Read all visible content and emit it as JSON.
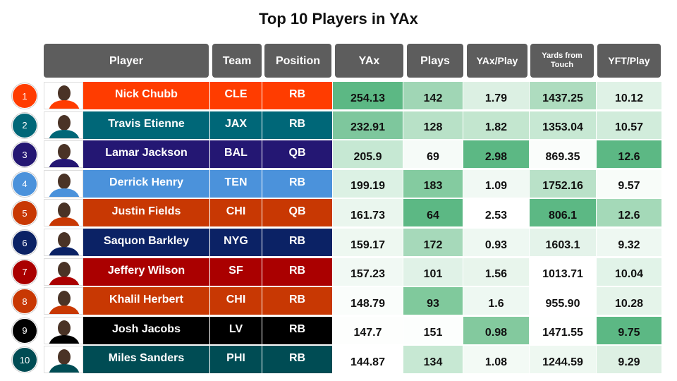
{
  "chart_data": {
    "type": "table",
    "title": "Top 10 Players in YAx",
    "columns": [
      "Player",
      "Team",
      "Position",
      "YAx",
      "Plays",
      "YAx/Play",
      "Yards from Touch",
      "YFT/Play"
    ],
    "rows": [
      {
        "rank": "1",
        "player": "Nick Chubb",
        "team": "CLE",
        "position": "RB",
        "yax": "254.13",
        "plays": "142",
        "yax_play": "1.79",
        "yft": "1437.25",
        "yft_play": "10.12"
      },
      {
        "rank": "2",
        "player": "Travis Etienne",
        "team": "JAX",
        "position": "RB",
        "yax": "232.91",
        "plays": "128",
        "yax_play": "1.82",
        "yft": "1353.04",
        "yft_play": "10.57"
      },
      {
        "rank": "3",
        "player": "Lamar Jackson",
        "team": "BAL",
        "position": "QB",
        "yax": "205.9",
        "plays": "69",
        "yax_play": "2.98",
        "yft": "869.35",
        "yft_play": "12.6"
      },
      {
        "rank": "4",
        "player": "Derrick Henry",
        "team": "TEN",
        "position": "RB",
        "yax": "199.19",
        "plays": "183",
        "yax_play": "1.09",
        "yft": "1752.16",
        "yft_play": "9.57"
      },
      {
        "rank": "5",
        "player": "Justin Fields",
        "team": "CHI",
        "position": "QB",
        "yax": "161.73",
        "plays": "64",
        "yax_play": "2.53",
        "yft": "806.1",
        "yft_play": "12.6"
      },
      {
        "rank": "6",
        "player": "Saquon Barkley",
        "team": "NYG",
        "position": "RB",
        "yax": "159.17",
        "plays": "172",
        "yax_play": "0.93",
        "yft": "1603.1",
        "yft_play": "9.32"
      },
      {
        "rank": "7",
        "player": "Jeffery Wilson",
        "team": "SF",
        "position": "RB",
        "yax": "157.23",
        "plays": "101",
        "yax_play": "1.56",
        "yft": "1013.71",
        "yft_play": "10.04"
      },
      {
        "rank": "8",
        "player": "Khalil Herbert",
        "team": "CHI",
        "position": "RB",
        "yax": "148.79",
        "plays": "93",
        "yax_play": "1.6",
        "yft": "955.90",
        "yft_play": "10.28"
      },
      {
        "rank": "9",
        "player": "Josh Jacobs",
        "team": "LV",
        "position": "RB",
        "yax": "147.7",
        "plays": "151",
        "yax_play": "0.98",
        "yft": "1471.55",
        "yft_play": "9.75"
      },
      {
        "rank": "10",
        "player": "Miles Sanders",
        "team": "PHI",
        "position": "RB",
        "yax": "144.87",
        "plays": "134",
        "yax_play": "1.08",
        "yft": "1244.59",
        "yft_play": "9.29"
      }
    ],
    "team_colors": {
      "CLE": "#ff3c00",
      "JAX": "#006778",
      "BAL": "#241773",
      "TEN": "#4b92db",
      "CHI": "#c83803",
      "NYG": "#0b2265",
      "SF": "#aa0000",
      "LV": "#000000",
      "PHI": "#004c54"
    },
    "cell_shades": {
      "yax": [
        "#5cb884",
        "#7ec79d",
        "#c6e8d3",
        "#dcf1e4",
        "#eaf6ee",
        "#eef8f1",
        "#f1f9f4",
        "#fafdfb",
        "#fdfefd",
        "#ffffff"
      ],
      "plays": [
        "#a0d6b5",
        "#b8e1c7",
        "#f6fbf8",
        "#84cba0",
        "#5cb884",
        "#a6d9ba",
        "#e0f2e7",
        "#80c99c",
        "#fcfefd",
        "#c7e8d3"
      ],
      "yax_play": [
        "#dcf0e3",
        "#c3e6cf",
        "#5cb884",
        "#f1f9f4",
        "#ffffff",
        "#eef8f2",
        "#e8f5ec",
        "#eef8f2",
        "#83c99e",
        "#f3faf5"
      ],
      "yft": [
        "#aedcbf",
        "#c7e8d3",
        "#fafdfb",
        "#b9e1c8",
        "#5cb884",
        "#e4f3ea",
        "#ffffff",
        "#ffffff",
        "#fefffe",
        "#eef8f1"
      ],
      "yft_play": [
        "#dff2e6",
        "#d1ecdb",
        "#5cb884",
        "#f8fcf9",
        "#a4d9b8",
        "#eef8f2",
        "#e1f3e8",
        "#e5f4ea",
        "#5cb884",
        "#ddf0e3"
      ]
    }
  }
}
